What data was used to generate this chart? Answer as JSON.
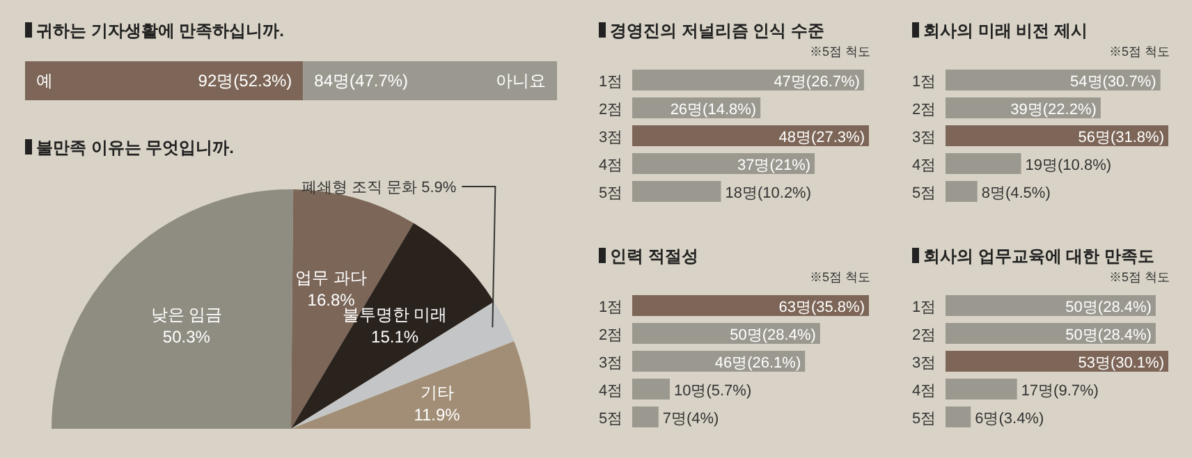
{
  "chart_data": [
    {
      "type": "bar",
      "title": "귀하는 기자생활에 만족하십니까.",
      "orientation": "horizontal",
      "stacked": true,
      "categories": [
        null
      ],
      "series": [
        {
          "name": "예",
          "color": "#7d6657",
          "values": [
            92
          ],
          "value_labels": [
            "92명(52.3%)"
          ]
        },
        {
          "name": "아니요",
          "color": "#9b998f",
          "values": [
            84
          ],
          "value_labels": [
            "84명(47.7%)"
          ]
        }
      ]
    },
    {
      "type": "pie",
      "title": "불만족 이유는 무엇입니까.",
      "categories": [
        "낮은 임금",
        "업무 과다",
        "불투명한 미래",
        "폐쇄형 조직 문화",
        "기타"
      ],
      "values": [
        50.3,
        16.8,
        15.1,
        5.9,
        11.9
      ],
      "value_labels": [
        "50.3%",
        "16.8%",
        "15.1%",
        "5.9%",
        "11.9%"
      ],
      "colors": [
        "#8f8d82",
        "#7b6658",
        "#2a221d",
        "#c4c5c6",
        "#a28e76"
      ]
    },
    {
      "type": "bar",
      "title": "경영진의 저널리즘 인식 수준",
      "orientation": "horizontal",
      "annotations": [
        "※5점 척도"
      ],
      "categories": [
        "1점",
        "2점",
        "3점",
        "4점",
        "5점"
      ],
      "values": [
        47,
        26,
        48,
        37,
        18
      ],
      "value_labels": [
        "47명(26.7%)",
        "26명(14.8%)",
        "48명(27.3%)",
        "37명(21%)",
        "18명(10.2%)"
      ],
      "colors": [
        "#9b998f",
        "#9b998f",
        "#7d6657",
        "#9b998f",
        "#9b998f"
      ]
    },
    {
      "type": "bar",
      "title": "회사의 미래 비전 제시",
      "orientation": "horizontal",
      "annotations": [
        "※5점 척도"
      ],
      "categories": [
        "1점",
        "2점",
        "3점",
        "4점",
        "5점"
      ],
      "values": [
        54,
        39,
        56,
        19,
        8
      ],
      "value_labels": [
        "54명(30.7%)",
        "39명(22.2%)",
        "56명(31.8%)",
        "19명(10.8%)",
        "8명(4.5%)"
      ],
      "colors": [
        "#9b998f",
        "#9b998f",
        "#7d6657",
        "#9b998f",
        "#9b998f"
      ]
    },
    {
      "type": "bar",
      "title": "인력 적절성",
      "orientation": "horizontal",
      "annotations": [
        "※5점 척도"
      ],
      "categories": [
        "1점",
        "2점",
        "3점",
        "4점",
        "5점"
      ],
      "values": [
        63,
        50,
        46,
        10,
        7
      ],
      "value_labels": [
        "63명(35.8%)",
        "50명(28.4%)",
        "46명(26.1%)",
        "10명(5.7%)",
        "7명(4%)"
      ],
      "colors": [
        "#7d6657",
        "#9b998f",
        "#9b998f",
        "#9b998f",
        "#9b998f"
      ]
    },
    {
      "type": "bar",
      "title": "회사의 업무교육에 대한 만족도",
      "orientation": "horizontal",
      "annotations": [
        "※5점 척도"
      ],
      "categories": [
        "1점",
        "2점",
        "3점",
        "4점",
        "5점"
      ],
      "values": [
        50,
        50,
        53,
        17,
        6
      ],
      "value_labels": [
        "50명(28.4%)",
        "50명(28.4%)",
        "53명(30.1%)",
        "17명(9.7%)",
        "6명(3.4%)"
      ],
      "colors": [
        "#9b998f",
        "#9b998f",
        "#7d6657",
        "#9b998f",
        "#9b998f"
      ]
    }
  ]
}
